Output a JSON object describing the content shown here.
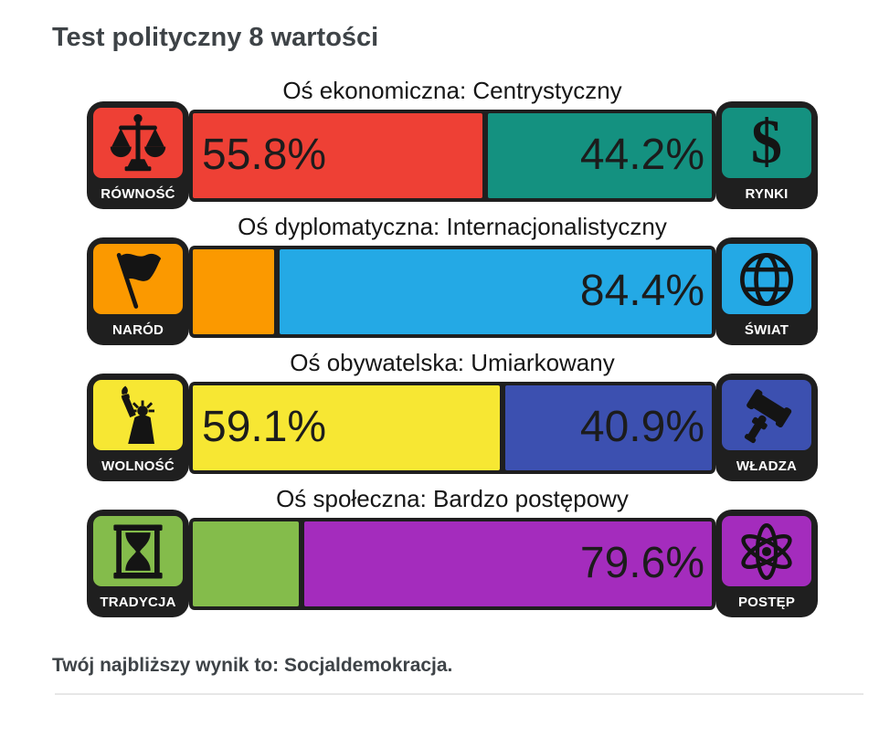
{
  "title": "Test polityczny 8 wartości",
  "result": "Twój najbliższy wynik to: Socjaldemokracja.",
  "colors": {
    "frame": "#1f1f1f",
    "title_text": "#3e4347",
    "header_text": "#161616",
    "percent_text": "#1c1c1c",
    "icon_label_text": "#ffffff",
    "divider": "#e7e7e7"
  },
  "chart_data": {
    "type": "bar",
    "orientation": "horizontal stacked pairs",
    "title": "Test polityczny 8 wartości",
    "axes": [
      {
        "header": "Oś ekonomiczna: Centrystyczny",
        "left": {
          "label": "RÓWNOŚĆ",
          "icon": "scales-icon",
          "value": 55.8,
          "display": "55.8%",
          "color": "#ee4035"
        },
        "right": {
          "label": "RYNKI",
          "icon": "dollar-icon",
          "icon_glyph": "$",
          "value": 44.2,
          "display": "44.2%",
          "color": "#149180"
        }
      },
      {
        "header": "Oś dyplomatyczna: Internacjonalistyczny",
        "left": {
          "label": "NARÓD",
          "icon": "flag-icon",
          "value": 15.6,
          "display": "",
          "color": "#fb9900"
        },
        "right": {
          "label": "ŚWIAT",
          "icon": "globe-icon",
          "value": 84.4,
          "display": "84.4%",
          "color": "#24a9e5"
        }
      },
      {
        "header": "Oś obywatelska: Umiarkowany",
        "left": {
          "label": "WOLNOŚĆ",
          "icon": "liberty-icon",
          "value": 59.1,
          "display": "59.1%",
          "color": "#f7e733"
        },
        "right": {
          "label": "WŁADZA",
          "icon": "gavel-icon",
          "value": 40.9,
          "display": "40.9%",
          "color": "#3c50b0"
        }
      },
      {
        "header": "Oś społeczna: Bardzo postępowy",
        "left": {
          "label": "TRADYCJA",
          "icon": "hourglass-icon",
          "value": 20.4,
          "display": "",
          "color": "#84bc4b"
        },
        "right": {
          "label": "POSTĘP",
          "icon": "atom-icon",
          "value": 79.6,
          "display": "79.6%",
          "color": "#a42cbd"
        }
      }
    ]
  }
}
